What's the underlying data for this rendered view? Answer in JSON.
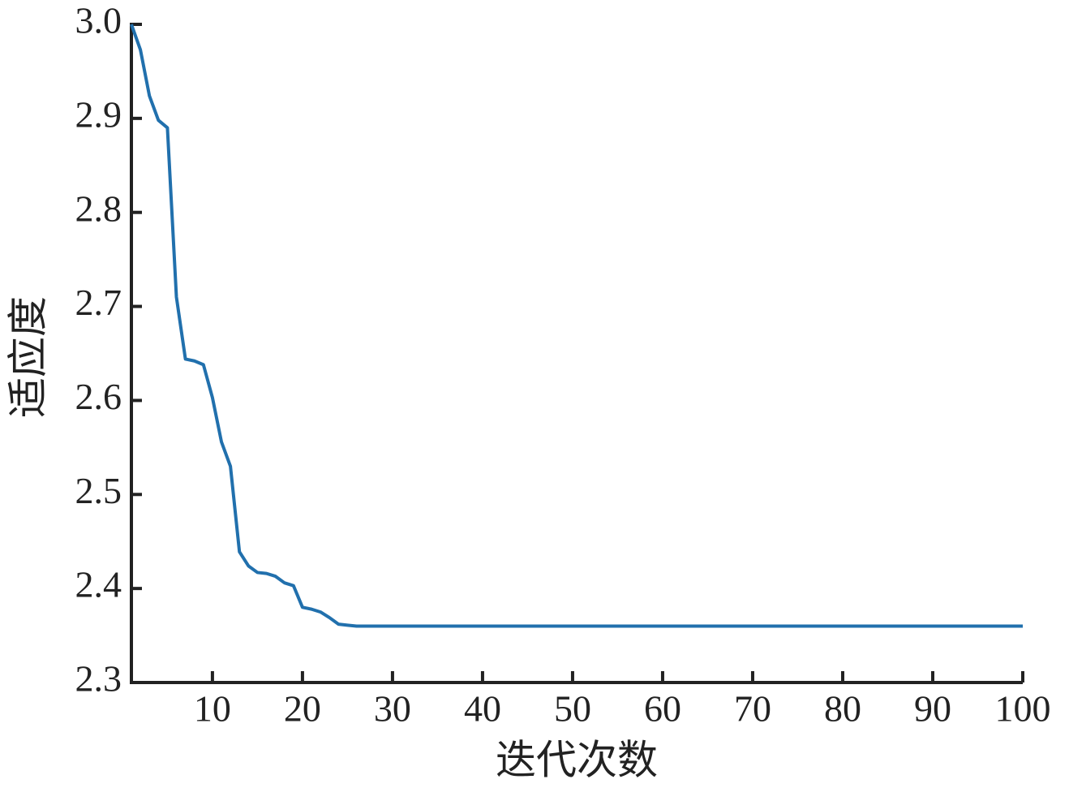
{
  "chart_data": {
    "type": "line",
    "x_label": "迭代次数",
    "y_label": "适应度",
    "x": [
      1,
      2,
      3,
      4,
      5,
      6,
      7,
      8,
      9,
      10,
      11,
      12,
      13,
      14,
      15,
      16,
      17,
      18,
      19,
      20,
      21,
      22,
      23,
      24,
      25,
      26,
      27,
      28,
      29,
      30,
      31,
      32,
      33,
      34,
      35,
      36,
      37,
      38,
      39,
      40,
      41,
      42,
      43,
      44,
      45,
      46,
      47,
      48,
      49,
      50,
      51,
      52,
      53,
      54,
      55,
      56,
      57,
      58,
      59,
      60,
      61,
      62,
      63,
      64,
      65,
      66,
      67,
      68,
      69,
      70,
      71,
      72,
      73,
      74,
      75,
      76,
      77,
      78,
      79,
      80,
      81,
      82,
      83,
      84,
      85,
      86,
      87,
      88,
      89,
      90,
      91,
      92,
      93,
      94,
      95,
      96,
      97,
      98,
      99,
      100
    ],
    "values": [
      3.0,
      2.973,
      2.924,
      2.898,
      2.89,
      2.71,
      2.644,
      2.642,
      2.638,
      2.603,
      2.556,
      2.53,
      2.439,
      2.424,
      2.417,
      2.416,
      2.413,
      2.406,
      2.403,
      2.38,
      2.378,
      2.375,
      2.369,
      2.362,
      2.361,
      2.36,
      2.36,
      2.36,
      2.36,
      2.36,
      2.36,
      2.36,
      2.36,
      2.36,
      2.36,
      2.36,
      2.36,
      2.36,
      2.36,
      2.36,
      2.36,
      2.36,
      2.36,
      2.36,
      2.36,
      2.36,
      2.36,
      2.36,
      2.36,
      2.36,
      2.36,
      2.36,
      2.36,
      2.36,
      2.36,
      2.36,
      2.36,
      2.36,
      2.36,
      2.36,
      2.36,
      2.36,
      2.36,
      2.36,
      2.36,
      2.36,
      2.36,
      2.36,
      2.36,
      2.36,
      2.36,
      2.36,
      2.36,
      2.36,
      2.36,
      2.36,
      2.36,
      2.36,
      2.36,
      2.36,
      2.36,
      2.36,
      2.36,
      2.36,
      2.36,
      2.36,
      2.36,
      2.36,
      2.36,
      2.36,
      2.36,
      2.36,
      2.36,
      2.36,
      2.36,
      2.36,
      2.36,
      2.36,
      2.36,
      2.36
    ],
    "color": "#2170ad",
    "xlim": [
      1,
      100
    ],
    "xticks": [
      10,
      20,
      30,
      40,
      50,
      60,
      70,
      80,
      90,
      100
    ],
    "ylim": [
      2.3,
      3.0
    ],
    "yticks": [
      2.3,
      2.4,
      2.5,
      2.6,
      2.7,
      2.8,
      2.9,
      {
        "value": 3.0,
        "label": "3.0"
      }
    ]
  }
}
